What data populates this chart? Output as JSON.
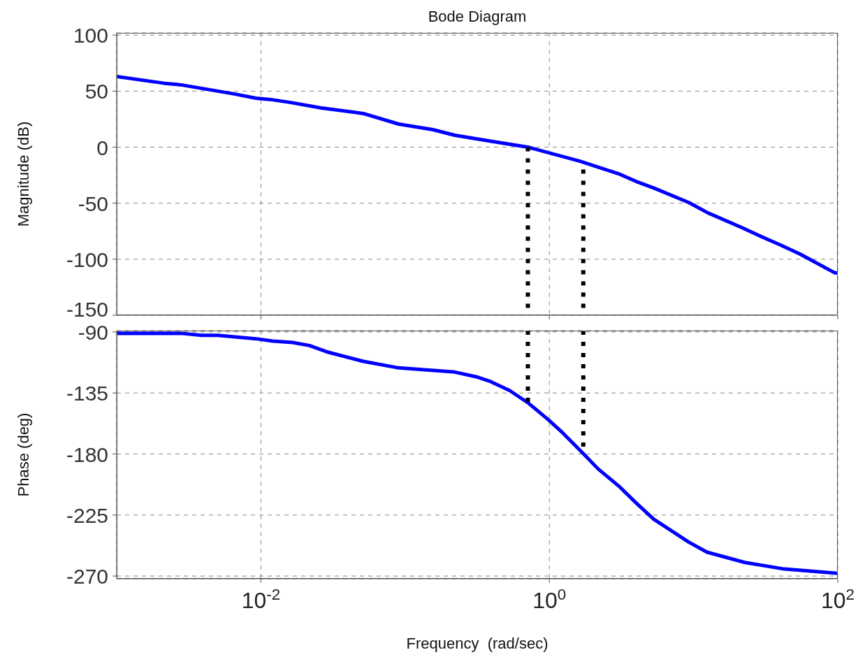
{
  "chart_data": [
    {
      "type": "line",
      "title": "Bode Diagram",
      "ylabel": "Magnitude (dB)",
      "log": "x",
      "grid": true,
      "tick_labels": "y",
      "marker": "none",
      "line_style": "solid",
      "xlim": [
        0.001,
        100
      ],
      "xticks": [
        0.01,
        1,
        100
      ],
      "ylim": [
        -150,
        102
      ],
      "yticks": [
        -150,
        -100,
        -50,
        0,
        50,
        100
      ],
      "series": [
        {
          "color": "#0000ff",
          "x": [
            0.001,
            0.00214,
            0.00279,
            0.00653,
            0.00925,
            0.0117,
            0.0158,
            0.0263,
            0.0513,
            0.0902,
            0.156,
            0.221,
            0.31,
            0.379,
            0.71,
            1.63,
            3.02,
            4.0,
            5.4,
            9.27,
            12.6,
            21.7,
            29.7,
            40.3,
            55.1,
            94.4,
            100
          ],
          "values": [
            63,
            57,
            55.6,
            47.5,
            43.7,
            42.5,
            40,
            35,
            30,
            20.6,
            15.6,
            10.6,
            7.5,
            5.6,
            0,
            -12.5,
            -23.7,
            -30.6,
            -36.9,
            -49.4,
            -58.7,
            -71.9,
            -80,
            -87.5,
            -95.6,
            -111.9,
            -112.5
          ]
        },
        {
          "type": "line",
          "color": "#000000",
          "line_style": "dotted",
          "x": [
            0.71,
            0.71
          ],
          "values": [
            0,
            -150
          ]
        },
        {
          "type": "line",
          "color": "#000000",
          "line_style": "dotted",
          "x": [
            1.72,
            1.72
          ],
          "values": [
            -20,
            -150
          ]
        }
      ]
    },
    {
      "type": "line",
      "ylabel": "Phase (deg)",
      "xlabel": "Frequency  (rad/sec)",
      "log": "x",
      "grid": true,
      "marker": "none",
      "line_style": "solid",
      "xlim": [
        0.001,
        100
      ],
      "xticks": [
        {
          "value": 0.01,
          "label": "10$^{-2}$"
        },
        {
          "value": 1,
          "label": "10$^{0}$"
        },
        {
          "value": 100,
          "label": "10$^{2}$"
        }
      ],
      "ylim": [
        -272,
        -89
      ],
      "yticks": [
        -270,
        -225,
        -180,
        -135,
        -90
      ],
      "series": [
        {
          "color": "#0000ff",
          "x": [
            0.001,
            0.00279,
            0.00387,
            0.00501,
            0.00925,
            0.0121,
            0.0166,
            0.0217,
            0.0294,
            0.0513,
            0.0902,
            0.221,
            0.31,
            0.392,
            0.531,
            0.71,
            0.983,
            1.24,
            1.72,
            2.18,
            3.08,
            3.99,
            5.28,
            9.27,
            12.4,
            22.7,
            41.2,
            100
          ],
          "values": [
            -91,
            -91,
            -92.5,
            -92.5,
            -95,
            -96.7,
            -97.8,
            -100,
            -105,
            -111.7,
            -116.5,
            -119.6,
            -123,
            -126.6,
            -133.2,
            -142.2,
            -154.7,
            -164.5,
            -179.7,
            -191,
            -204.3,
            -216,
            -228,
            -245,
            -252.4,
            -260,
            -264.6,
            -268
          ]
        },
        {
          "type": "line",
          "color": "#000000",
          "line_style": "dotted",
          "x": [
            0.71,
            0.71
          ],
          "values": [
            -89,
            -142.2
          ]
        },
        {
          "type": "line",
          "color": "#000000",
          "line_style": "dotted",
          "x": [
            1.72,
            1.72
          ],
          "values": [
            -89,
            -179.7
          ]
        }
      ]
    }
  ]
}
